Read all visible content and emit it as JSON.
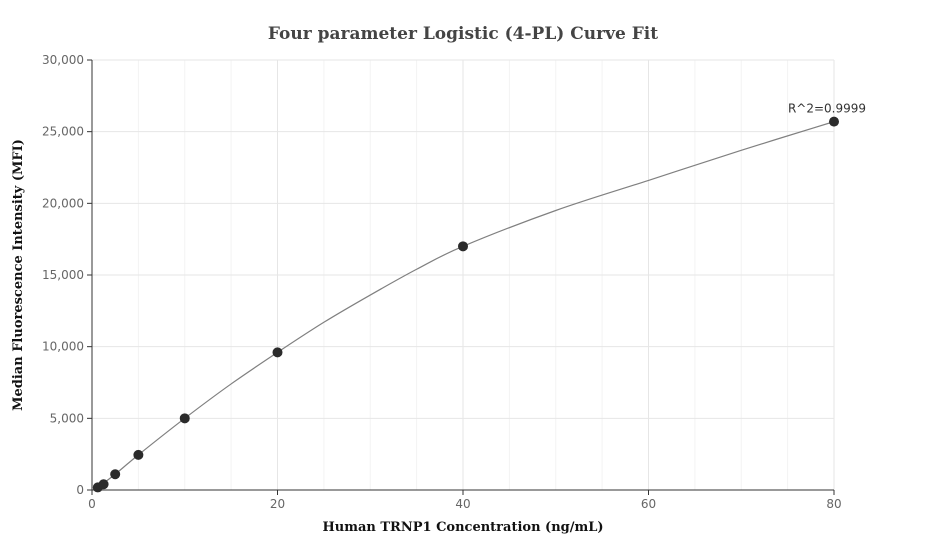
{
  "chart_data": {
    "type": "scatter",
    "title": "Four parameter Logistic (4-PL) Curve Fit",
    "xlabel": "Human TRNP1 Concentration (ng/mL)",
    "ylabel": "Median Fluorescence Intensity (MFI)",
    "xlim": [
      0,
      80
    ],
    "ylim": [
      0,
      30000
    ],
    "x_ticks": [
      0,
      20,
      40,
      60,
      80
    ],
    "x_tick_labels": [
      "0",
      "20",
      "40",
      "60",
      "80"
    ],
    "y_ticks": [
      0,
      5000,
      10000,
      15000,
      20000,
      25000,
      30000
    ],
    "y_tick_labels": [
      "0",
      "5,000",
      "10,000",
      "15,000",
      "20,000",
      "25,000",
      "30,000"
    ],
    "grid": true,
    "points": {
      "x": [
        0.625,
        1.25,
        2.5,
        5,
        10,
        20,
        40,
        80
      ],
      "y": [
        180,
        400,
        1100,
        2450,
        5000,
        9600,
        17000,
        25700
      ]
    },
    "fit_curve": {
      "x": [
        0.625,
        2.5,
        5,
        10,
        15,
        20,
        25,
        30,
        35,
        40,
        50,
        60,
        70,
        80
      ],
      "y": [
        180,
        1100,
        2450,
        5000,
        7400,
        9600,
        11700,
        13600,
        15400,
        17000,
        19500,
        21600,
        23700,
        25700
      ]
    },
    "annotation": "R^2=0.9999",
    "colors": {
      "points": "#2b2b2b",
      "curve": "#808080",
      "grid": "#e6e6e6"
    }
  }
}
